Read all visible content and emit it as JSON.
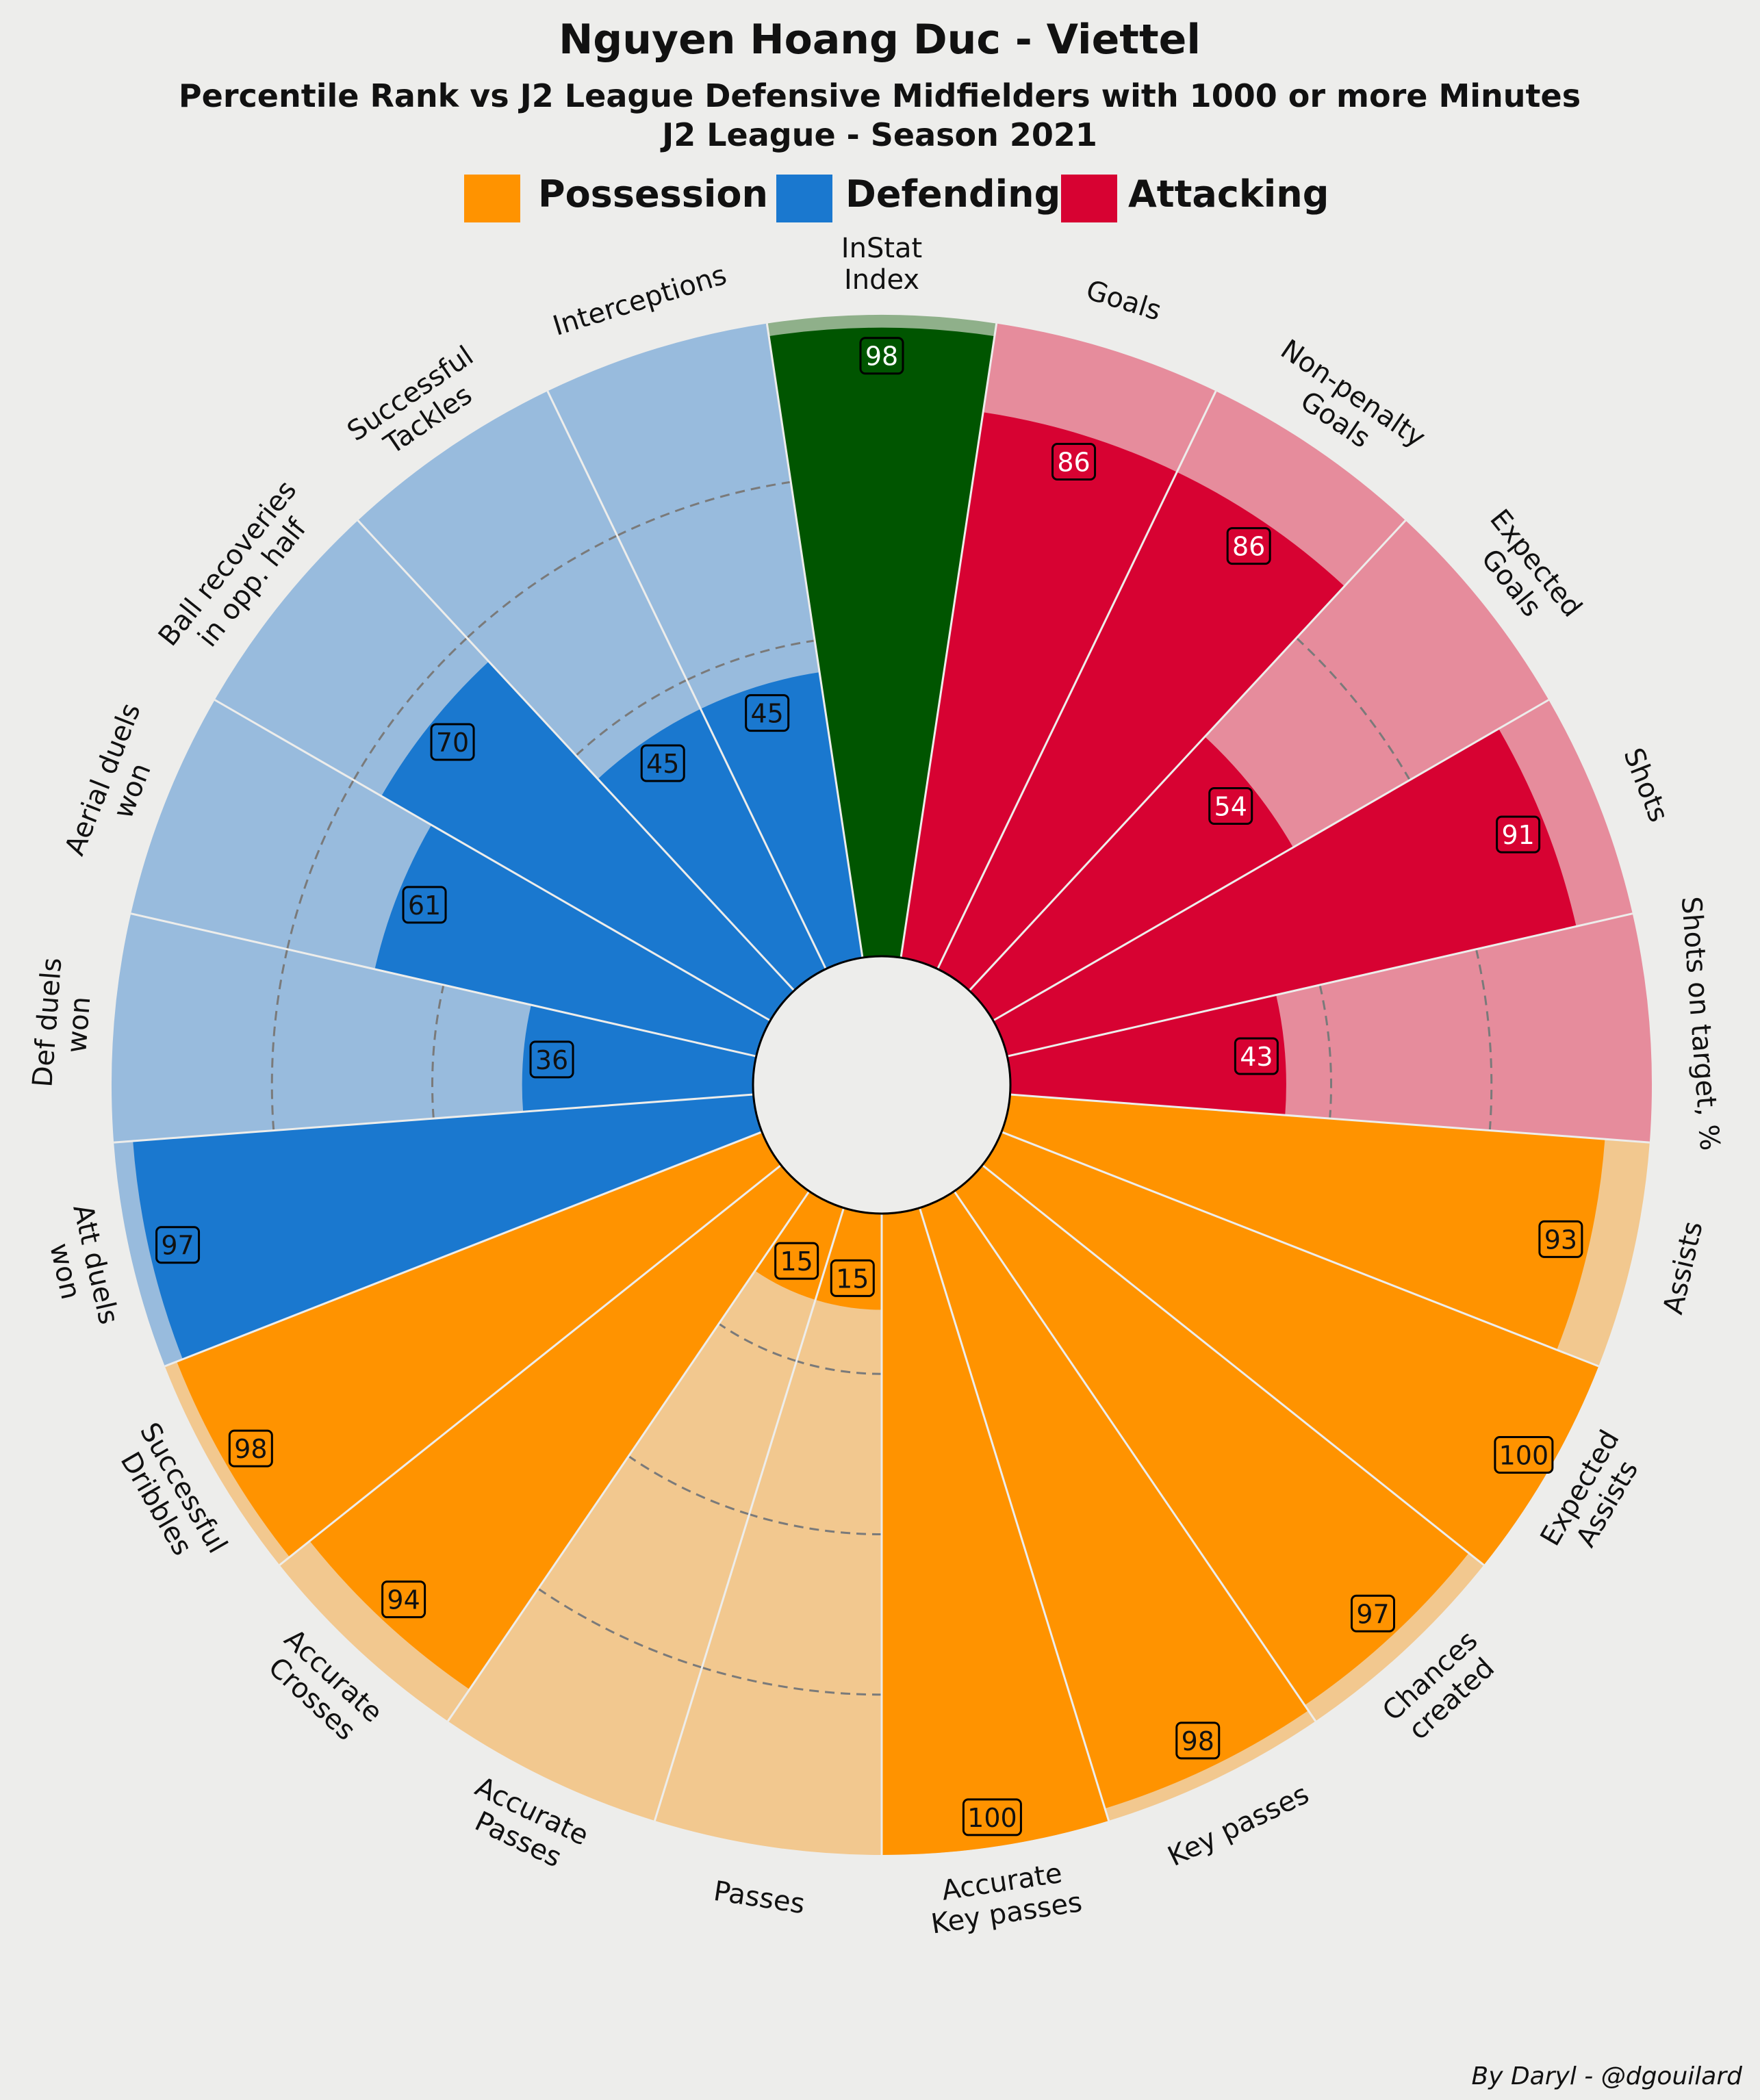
{
  "title": "Nguyen Hoang Duc - Viettel",
  "subtitle_1": "Percentile Rank vs J2 League Defensive Midfielders with 1000 or more Minutes",
  "subtitle_2": "J2 League - Season 2021",
  "credit": "By Daryl - @dgouilard",
  "legend": [
    {
      "label": "Possession",
      "color": "#ff9300"
    },
    {
      "label": "Defending",
      "color": "#1a78cf"
    },
    {
      "label": "Attacking",
      "color": "#d70232"
    }
  ],
  "colors": {
    "background": "#ededeb",
    "index_main": "#005500",
    "index_light": "#8fb08a",
    "possession_light": "#f2c88f",
    "defending_light": "#98bbdd",
    "attacking_light": "#e68c9c"
  },
  "chart_data": {
    "type": "radar-polar-bar",
    "scale": [
      0,
      100
    ],
    "gridlines_dashed": [
      25,
      50,
      75
    ],
    "params": [
      {
        "label": [
          "InStat",
          "Index"
        ],
        "value": 98,
        "group": "Index"
      },
      {
        "label": [
          "Goals"
        ],
        "value": 86,
        "group": "Attacking"
      },
      {
        "label": [
          "Non-penalty",
          "Goals"
        ],
        "value": 86,
        "group": "Attacking"
      },
      {
        "label": [
          "Expected",
          "Goals"
        ],
        "value": 54,
        "group": "Attacking"
      },
      {
        "label": [
          "Shots"
        ],
        "value": 91,
        "group": "Attacking"
      },
      {
        "label": [
          "Shots on target, %"
        ],
        "value": 43,
        "group": "Attacking"
      },
      {
        "label": [
          "Assists"
        ],
        "value": 93,
        "group": "Possession"
      },
      {
        "label": [
          "Expected",
          "Assists"
        ],
        "value": 100,
        "group": "Possession"
      },
      {
        "label": [
          "Chances",
          "created"
        ],
        "value": 97,
        "group": "Possession"
      },
      {
        "label": [
          "Key passes"
        ],
        "value": 98,
        "group": "Possession"
      },
      {
        "label": [
          "Accurate",
          "Key passes"
        ],
        "value": 100,
        "group": "Possession"
      },
      {
        "label": [
          "Passes"
        ],
        "value": 15,
        "group": "Possession"
      },
      {
        "label": [
          "Accurate",
          "Passes"
        ],
        "value": 15,
        "group": "Possession"
      },
      {
        "label": [
          "Accurate",
          "Crosses"
        ],
        "value": 94,
        "group": "Possession"
      },
      {
        "label": [
          "Successful",
          "Dribbles"
        ],
        "value": 98,
        "group": "Possession"
      },
      {
        "label": [
          "Att duels",
          "won"
        ],
        "value": 97,
        "group": "Defending"
      },
      {
        "label": [
          "Def duels",
          "won"
        ],
        "value": 36,
        "group": "Defending"
      },
      {
        "label": [
          "Aerial duels",
          "won"
        ],
        "value": 61,
        "group": "Defending"
      },
      {
        "label": [
          "Ball recoveries",
          "in opp. half"
        ],
        "value": 70,
        "group": "Defending"
      },
      {
        "label": [
          "Successful",
          "Tackles"
        ],
        "value": 45,
        "group": "Defending"
      },
      {
        "label": [
          "Interceptions"
        ],
        "value": 45,
        "group": "Defending"
      }
    ]
  }
}
